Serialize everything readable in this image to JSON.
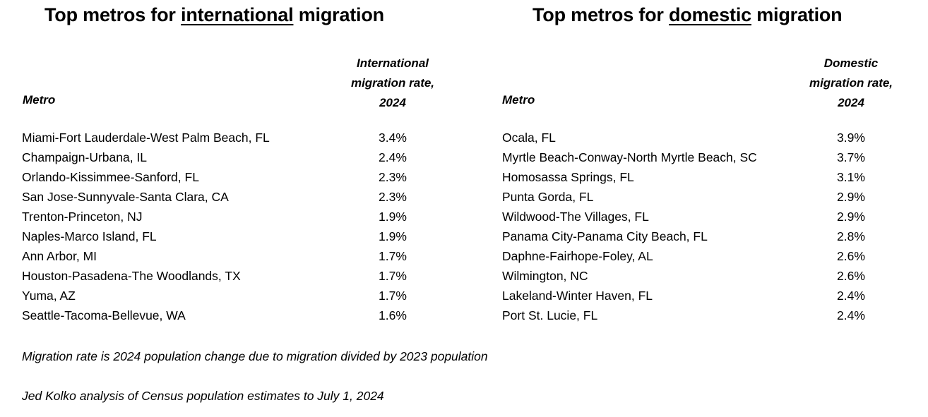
{
  "chart_data": [
    {
      "type": "table",
      "title_prefix": "Top metros for ",
      "title_emphasis": "international",
      "title_suffix": " migration",
      "columns": [
        "Metro",
        "International migration rate, 2024"
      ],
      "metro_header": "Metro",
      "rate_header_lines": [
        "International",
        "migration rate,",
        "2024"
      ],
      "rows": [
        {
          "metro": "Miami-Fort Lauderdale-West Palm Beach, FL",
          "rate": "3.4%"
        },
        {
          "metro": "Champaign-Urbana, IL",
          "rate": "2.4%"
        },
        {
          "metro": "Orlando-Kissimmee-Sanford, FL",
          "rate": "2.3%"
        },
        {
          "metro": "San Jose-Sunnyvale-Santa Clara, CA",
          "rate": "2.3%"
        },
        {
          "metro": "Trenton-Princeton, NJ",
          "rate": "1.9%"
        },
        {
          "metro": "Naples-Marco Island, FL",
          "rate": "1.9%"
        },
        {
          "metro": "Ann Arbor, MI",
          "rate": "1.7%"
        },
        {
          "metro": "Houston-Pasadena-The Woodlands, TX",
          "rate": "1.7%"
        },
        {
          "metro": "Yuma, AZ",
          "rate": "1.7%"
        },
        {
          "metro": "Seattle-Tacoma-Bellevue, WA",
          "rate": "1.6%"
        }
      ]
    },
    {
      "type": "table",
      "title_prefix": "Top metros for ",
      "title_emphasis": "domestic",
      "title_suffix": " migration",
      "columns": [
        "Metro",
        "Domestic migration rate, 2024"
      ],
      "metro_header": "Metro",
      "rate_header_lines": [
        "Domestic",
        "migration rate,",
        "2024"
      ],
      "rows": [
        {
          "metro": "Ocala, FL",
          "rate": "3.9%"
        },
        {
          "metro": "Myrtle Beach-Conway-North Myrtle Beach, SC",
          "rate": "3.7%"
        },
        {
          "metro": "Homosassa Springs, FL",
          "rate": "3.1%"
        },
        {
          "metro": "Punta Gorda, FL",
          "rate": "2.9%"
        },
        {
          "metro": "Wildwood-The Villages, FL",
          "rate": "2.9%"
        },
        {
          "metro": "Panama City-Panama City Beach, FL",
          "rate": "2.8%"
        },
        {
          "metro": "Daphne-Fairhope-Foley, AL",
          "rate": "2.6%"
        },
        {
          "metro": "Wilmington, NC",
          "rate": "2.6%"
        },
        {
          "metro": "Lakeland-Winter Haven, FL",
          "rate": "2.4%"
        },
        {
          "metro": "Port St. Lucie, FL",
          "rate": "2.4%"
        }
      ]
    }
  ],
  "notes": {
    "definition": "Migration rate is 2024 population change due to migration divided by 2023 population",
    "source": "Jed Kolko analysis of Census population estimates to July 1, 2024"
  }
}
